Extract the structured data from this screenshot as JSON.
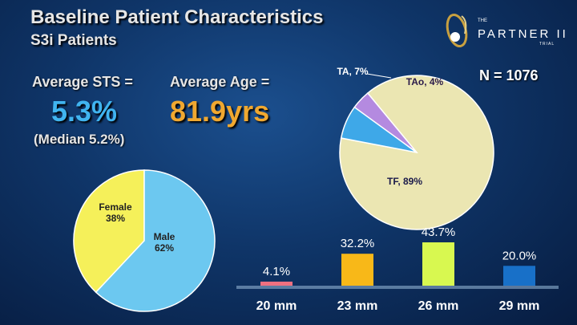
{
  "slide": {
    "title": "Baseline Patient Characteristics",
    "subtitle": "S3i Patients",
    "sts_label": "Average STS =",
    "sts_value": "5.3%",
    "sts_median": "(Median 5.2%)",
    "age_label": "Average Age =",
    "age_value": "81.9yrs",
    "n_label": "N = 1076",
    "colors": {
      "accent": "#40b4f0",
      "age": "#f0a830",
      "sts": "#40b4f0"
    }
  },
  "logo": {
    "the": "THE",
    "name": "PARTNER II",
    "trial": "TRIAL"
  },
  "chart_data": [
    {
      "type": "pie",
      "labels": [
        "Female",
        "Male"
      ],
      "display_labels": [
        [
          "Female",
          "38%"
        ],
        [
          "Male",
          "62%"
        ]
      ],
      "values": [
        38,
        62
      ],
      "colors": [
        "#f5f05a",
        "#6cc8f0"
      ]
    },
    {
      "type": "pie",
      "labels": [
        "TF",
        "TA",
        "TAo"
      ],
      "display_labels": [
        "TF, 89%",
        "TA, 7%",
        "TAo, 4%"
      ],
      "values": [
        89,
        7,
        4
      ],
      "colors": [
        "#ebe6b2",
        "#3ea8e8",
        "#b48ae0"
      ]
    },
    {
      "type": "bar",
      "categories": [
        "20 mm",
        "23 mm",
        "26 mm",
        "29 mm"
      ],
      "values": [
        4.1,
        32.2,
        43.7,
        20.0
      ],
      "value_labels": [
        "4.1%",
        "32.2%",
        "43.7%",
        "20.0%"
      ],
      "colors": [
        "#f07080",
        "#f8b818",
        "#d8f850",
        "#1870c8"
      ],
      "ylim": [
        0,
        43.7
      ],
      "grid": false
    }
  ]
}
